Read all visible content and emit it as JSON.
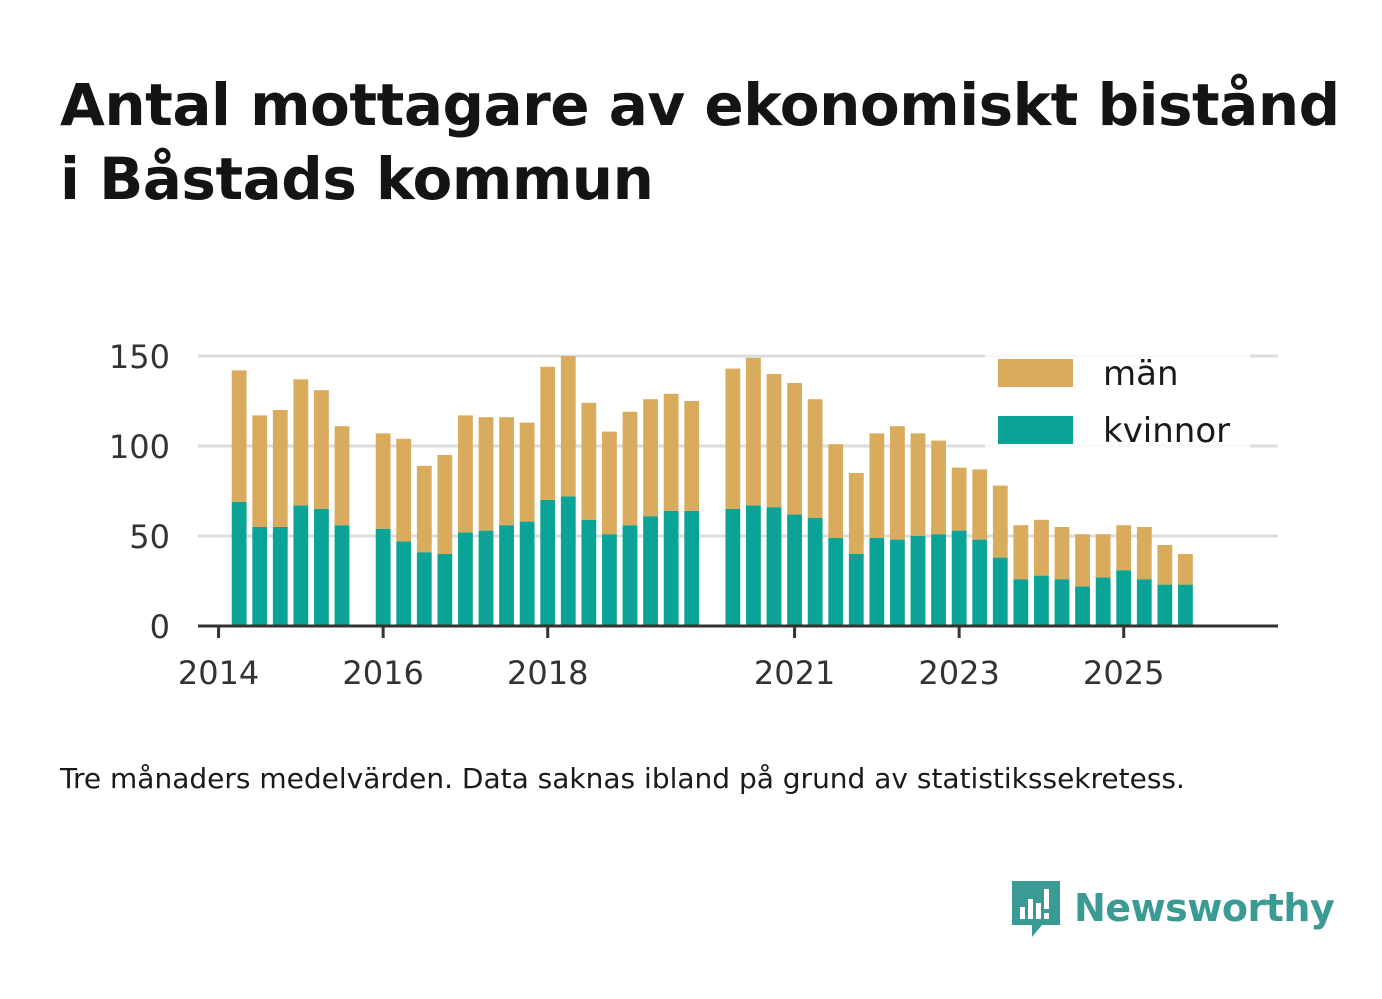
{
  "header": {
    "title_line1": "Antal mottagare av ekonomiskt bistånd",
    "title_line2": "i Båstads kommun"
  },
  "footer": {
    "caption": "Tre månaders medelvärden. Data saknas ibland på grund av statistikssekretess.",
    "brand": "Newsworthy",
    "brand_icon": "newsworthy-logo-icon"
  },
  "colors": {
    "man": "#d9ab5c",
    "kvinnor": "#0ba396",
    "grid": "#dddddd",
    "axis": "#333333",
    "brand": "#3a9a94"
  },
  "chart_data": {
    "type": "bar",
    "stacked": true,
    "title": "Antal mottagare av ekonomiskt bistånd i Båstads kommun",
    "xlabel": "",
    "ylabel": "",
    "ylim": [
      0,
      150
    ],
    "yticks": [
      0,
      50,
      100,
      150
    ],
    "x_index_range": [
      -1,
      51.5
    ],
    "xticks": [
      {
        "label": "2014",
        "index": 0
      },
      {
        "label": "2016",
        "index": 8
      },
      {
        "label": "2018",
        "index": 16
      },
      {
        "label": "2021",
        "index": 28
      },
      {
        "label": "2023",
        "index": 36
      },
      {
        "label": "2025",
        "index": 44
      }
    ],
    "grid": true,
    "legend_position": "top-right",
    "series": [
      {
        "name": "kvinnor",
        "values": [
          null,
          69,
          55,
          55,
          67,
          65,
          56,
          null,
          54,
          47,
          41,
          40,
          52,
          53,
          56,
          58,
          70,
          72,
          59,
          51,
          56,
          61,
          64,
          64,
          null,
          65,
          67,
          66,
          62,
          60,
          49,
          40,
          49,
          48,
          50,
          51,
          53,
          48,
          38,
          26,
          28,
          26,
          22,
          27,
          31,
          26,
          23,
          23
        ]
      },
      {
        "name": "män",
        "values": [
          null,
          73,
          62,
          65,
          70,
          66,
          55,
          null,
          53,
          57,
          48,
          55,
          65,
          63,
          60,
          55,
          74,
          78,
          65,
          57,
          63,
          65,
          65,
          61,
          null,
          78,
          82,
          74,
          73,
          66,
          52,
          45,
          58,
          63,
          57,
          52,
          35,
          39,
          40,
          30,
          31,
          29,
          29,
          24,
          25,
          29,
          22,
          17
        ]
      }
    ]
  }
}
